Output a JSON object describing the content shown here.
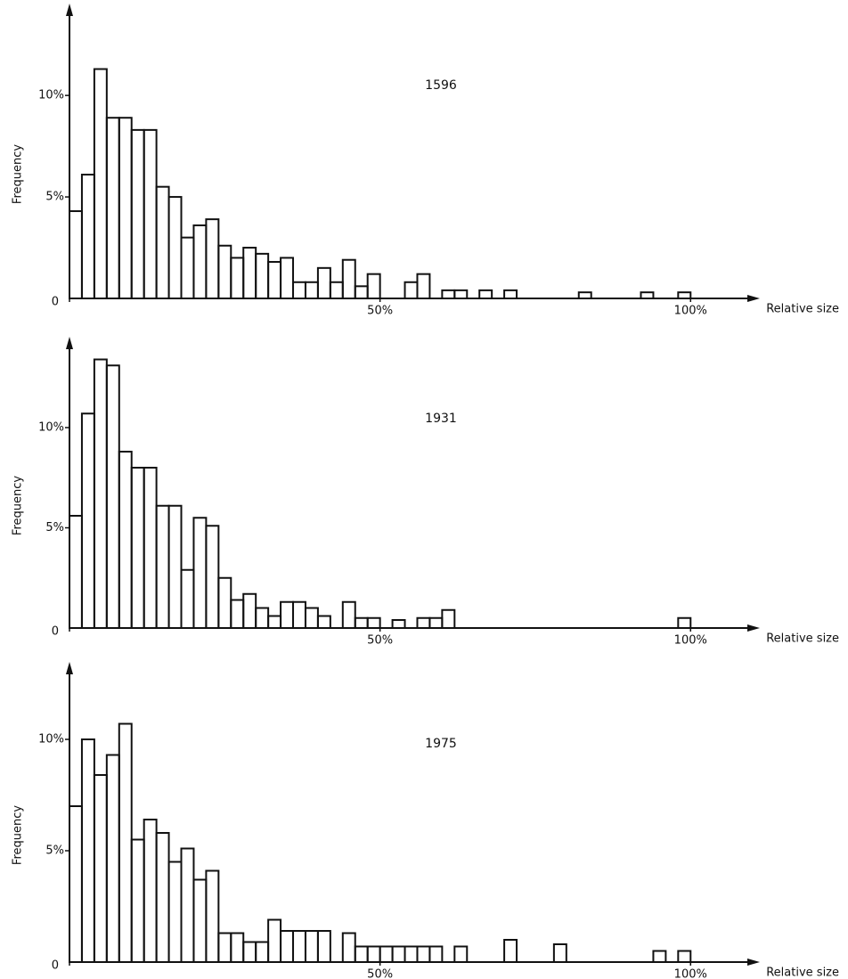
{
  "chart_data": [
    {
      "type": "histogram",
      "title": "1596",
      "xlabel": "Relative size",
      "ylabel": "Frequency",
      "color": "#111",
      "bins": [
        0,
        2,
        4,
        6,
        8,
        10,
        12,
        14,
        16,
        18,
        20,
        22,
        24,
        26,
        28,
        30,
        32,
        34,
        36,
        38,
        40,
        42,
        44,
        46,
        48,
        50,
        52,
        54,
        56,
        58,
        60,
        62,
        64,
        66,
        68,
        70,
        72,
        74,
        76,
        78,
        80,
        82,
        84,
        86,
        88,
        90,
        92,
        94,
        96,
        98,
        100
      ],
      "counts": [
        4.3,
        6.1,
        11.3,
        8.9,
        8.9,
        8.3,
        8.3,
        5.5,
        5.0,
        3.0,
        3.6,
        3.9,
        2.6,
        2.0,
        2.5,
        2.2,
        1.8,
        2.0,
        0.8,
        0.8,
        1.5,
        0.8,
        1.9,
        0.6,
        1.2,
        0,
        0,
        0.8,
        1.2,
        0,
        0.4,
        0.4,
        0,
        0.4,
        0,
        0.4,
        0,
        0,
        0,
        0,
        0,
        0.3,
        0,
        0,
        0,
        0,
        0.3,
        0,
        0,
        0.3
      ],
      "xlim": [
        0,
        110
      ],
      "ylim": [
        0,
        14
      ],
      "xticks": [
        0,
        {
          "value": 50,
          "label": "50%"
        },
        {
          "value": 100,
          "label": "100%"
        }
      ],
      "yticks": [
        {
          "value": 5,
          "label": "5%"
        },
        {
          "value": 10,
          "label": "10%"
        }
      ]
    },
    {
      "type": "histogram",
      "title": "1931",
      "xlabel": "Relative size",
      "ylabel": "Frequency",
      "color": "#111",
      "bins": [
        0,
        2,
        4,
        6,
        8,
        10,
        12,
        14,
        16,
        18,
        20,
        22,
        24,
        26,
        28,
        30,
        32,
        34,
        36,
        38,
        40,
        42,
        44,
        46,
        48,
        50,
        52,
        54,
        56,
        58,
        60,
        62,
        64,
        66,
        68,
        70,
        72,
        74,
        76,
        78,
        80,
        82,
        84,
        86,
        88,
        90,
        92,
        94,
        96,
        98,
        100
      ],
      "counts": [
        5.6,
        10.7,
        13.4,
        13.1,
        8.8,
        8.0,
        8.0,
        6.1,
        6.1,
        2.9,
        5.5,
        5.1,
        2.5,
        1.4,
        1.7,
        1.0,
        0.6,
        1.3,
        1.3,
        1.0,
        0.6,
        0,
        1.3,
        0.5,
        0.5,
        0,
        0.4,
        0,
        0.5,
        0.5,
        0.9,
        0,
        0,
        0,
        0,
        0,
        0,
        0,
        0,
        0,
        0,
        0,
        0,
        0,
        0,
        0,
        0,
        0,
        0,
        0.5
      ],
      "xlim": [
        0,
        110
      ],
      "ylim": [
        0,
        14
      ],
      "xticks": [
        0,
        {
          "value": 50,
          "label": "50%"
        },
        {
          "value": 100,
          "label": "100%"
        }
      ],
      "yticks": [
        {
          "value": 5,
          "label": "5%"
        },
        {
          "value": 10,
          "label": "10%"
        }
      ]
    },
    {
      "type": "histogram",
      "title": "1975",
      "xlabel": "Relative size",
      "ylabel": "Frequency",
      "color": "#111",
      "bins": [
        0,
        2,
        4,
        6,
        8,
        10,
        12,
        14,
        16,
        18,
        20,
        22,
        24,
        26,
        28,
        30,
        32,
        34,
        36,
        38,
        40,
        42,
        44,
        46,
        48,
        50,
        52,
        54,
        56,
        58,
        60,
        62,
        64,
        66,
        68,
        70,
        72,
        74,
        76,
        78,
        80,
        82,
        84,
        86,
        88,
        90,
        92,
        94,
        96,
        98,
        100
      ],
      "counts": [
        7.0,
        10.0,
        8.4,
        9.3,
        10.7,
        5.5,
        6.4,
        5.8,
        4.5,
        5.1,
        3.7,
        4.1,
        1.3,
        1.3,
        0.9,
        0.9,
        1.9,
        1.4,
        1.4,
        1.4,
        1.4,
        0,
        1.3,
        0.7,
        0.7,
        0.7,
        0.7,
        0.7,
        0.7,
        0.7,
        0,
        0.7,
        0,
        0,
        0,
        1.0,
        0,
        0,
        0,
        0.8,
        0,
        0,
        0,
        0,
        0,
        0,
        0,
        0.5,
        0,
        0.5
      ],
      "xlim": [
        0,
        110
      ],
      "ylim": [
        0,
        13
      ],
      "xticks": [
        0,
        {
          "value": 50,
          "label": "50%"
        },
        {
          "value": 100,
          "label": "100%"
        }
      ],
      "yticks": [
        {
          "value": 5,
          "label": "5%"
        },
        {
          "value": 10,
          "label": "10%"
        }
      ]
    }
  ]
}
